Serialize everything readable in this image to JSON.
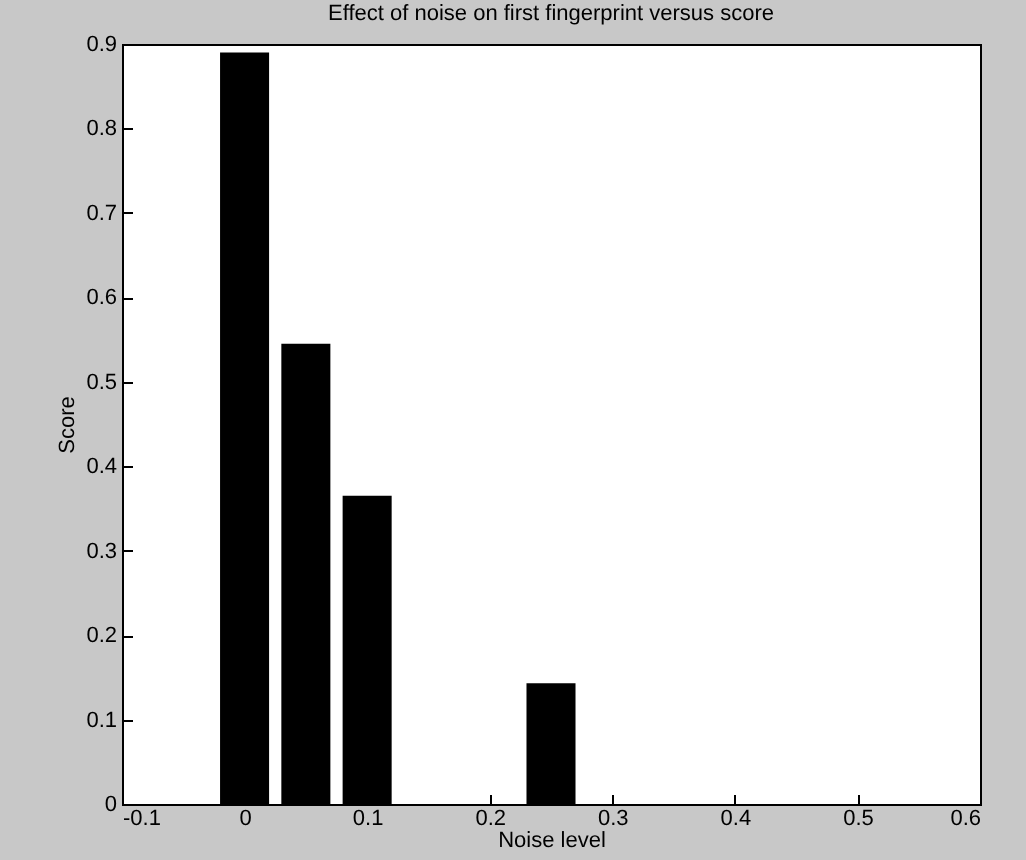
{
  "chart_data": {
    "type": "bar",
    "title": "Effect of noise on first fingerprint versus score",
    "xlabel": "Noise level",
    "ylabel": "Score",
    "x": [
      0,
      0.05,
      0.1,
      0.25
    ],
    "values": [
      0.89,
      0.545,
      0.365,
      0.143
    ],
    "color": "#000000",
    "xlim": [
      -0.1,
      0.6
    ],
    "xticks": [
      -0.1,
      0,
      0.1,
      0.2,
      0.3,
      0.4,
      0.5,
      0.6
    ],
    "ylim": [
      0,
      0.9
    ],
    "yticks": [
      0,
      0.1,
      0.2,
      0.3,
      0.4,
      0.5,
      0.6,
      0.7,
      0.8,
      0.9
    ]
  }
}
